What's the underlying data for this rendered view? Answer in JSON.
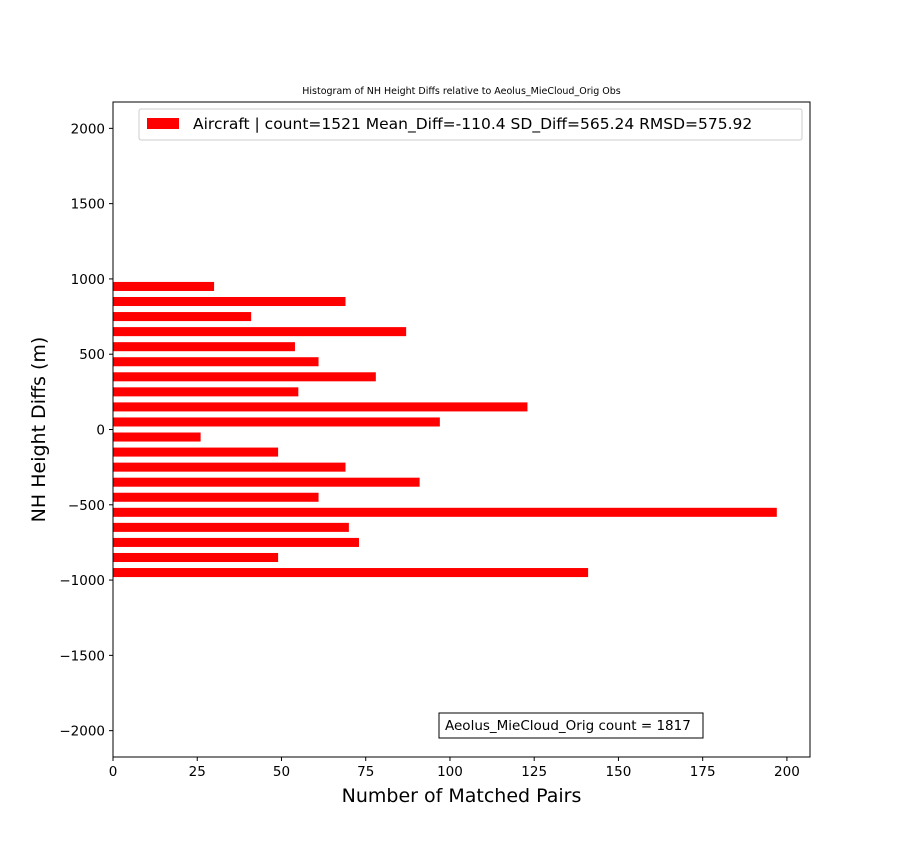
{
  "chart_data": {
    "type": "bar",
    "orientation": "horizontal",
    "title": "Histogram of NH Height Diffs relative to Aeolus_MieCloud_Orig Obs",
    "xlabel": "Number of Matched Pairs",
    "ylabel": "NH Height Diffs (m)",
    "xlim": [
      0,
      206.85
    ],
    "ylim": [
      -2175,
      2175
    ],
    "xticks": [
      0,
      25,
      50,
      75,
      100,
      125,
      150,
      175,
      200
    ],
    "yticks": [
      -2000,
      -1500,
      -1000,
      -500,
      0,
      500,
      1000,
      1500,
      2000
    ],
    "ytick_labels": [
      "−2000",
      "−1500",
      "−1000",
      "−500",
      "0",
      "500",
      "1000",
      "1500",
      "2000"
    ],
    "bar_height": 60,
    "series": [
      {
        "name": "Aircraft | count=1521 Mean_Diff=-110.4 SD_Diff=565.24 RMSD=575.92",
        "color": "#ff0000",
        "y": [
          -950,
          -850,
          -750,
          -650,
          -550,
          -450,
          -350,
          -250,
          -150,
          -50,
          50,
          150,
          250,
          350,
          450,
          550,
          650,
          750,
          850,
          950
        ],
        "values": [
          141,
          49,
          73,
          70,
          197,
          61,
          91,
          69,
          49,
          26,
          97,
          123,
          55,
          78,
          61,
          54,
          87,
          41,
          69,
          30
        ]
      }
    ],
    "legend_position": "top-right",
    "annotation": "Aeolus_MieCloud_Orig count = 1817",
    "grid": false
  }
}
